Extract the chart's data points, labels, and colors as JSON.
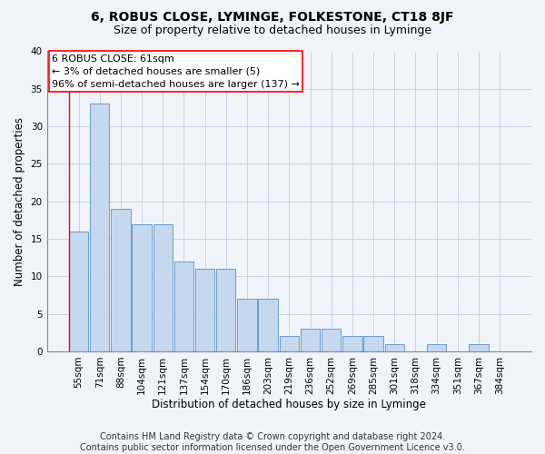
{
  "title": "6, ROBUS CLOSE, LYMINGE, FOLKESTONE, CT18 8JF",
  "subtitle": "Size of property relative to detached houses in Lyminge",
  "xlabel": "Distribution of detached houses by size in Lyminge",
  "ylabel": "Number of detached properties",
  "footer_line1": "Contains HM Land Registry data © Crown copyright and database right 2024.",
  "footer_line2": "Contains public sector information licensed under the Open Government Licence v3.0.",
  "categories": [
    "55sqm",
    "71sqm",
    "88sqm",
    "104sqm",
    "121sqm",
    "137sqm",
    "154sqm",
    "170sqm",
    "186sqm",
    "203sqm",
    "219sqm",
    "236sqm",
    "252sqm",
    "269sqm",
    "285sqm",
    "301sqm",
    "318sqm",
    "334sqm",
    "351sqm",
    "367sqm",
    "384sqm"
  ],
  "values": [
    16,
    33,
    19,
    17,
    17,
    12,
    11,
    11,
    7,
    7,
    2,
    3,
    3,
    2,
    2,
    1,
    0,
    1,
    0,
    1,
    0
  ],
  "bar_color": "#c5d8ee",
  "bar_edge_color": "#5b8fc9",
  "annotation_text_line1": "6 ROBUS CLOSE: 61sqm",
  "annotation_text_line2": "← 3% of detached houses are smaller (5)",
  "annotation_text_line3": "96% of semi-detached houses are larger (137) →",
  "red_line_bar_index": 0,
  "ylim": [
    0,
    40
  ],
  "yticks": [
    0,
    5,
    10,
    15,
    20,
    25,
    30,
    35,
    40
  ],
  "background_color": "#f0f4fa",
  "plot_bg_color": "#f0f4fa",
  "grid_color": "#c8d4e8",
  "title_fontsize": 10,
  "subtitle_fontsize": 9,
  "axis_label_fontsize": 8.5,
  "tick_fontsize": 7.5,
  "footer_fontsize": 7,
  "annot_fontsize": 8
}
